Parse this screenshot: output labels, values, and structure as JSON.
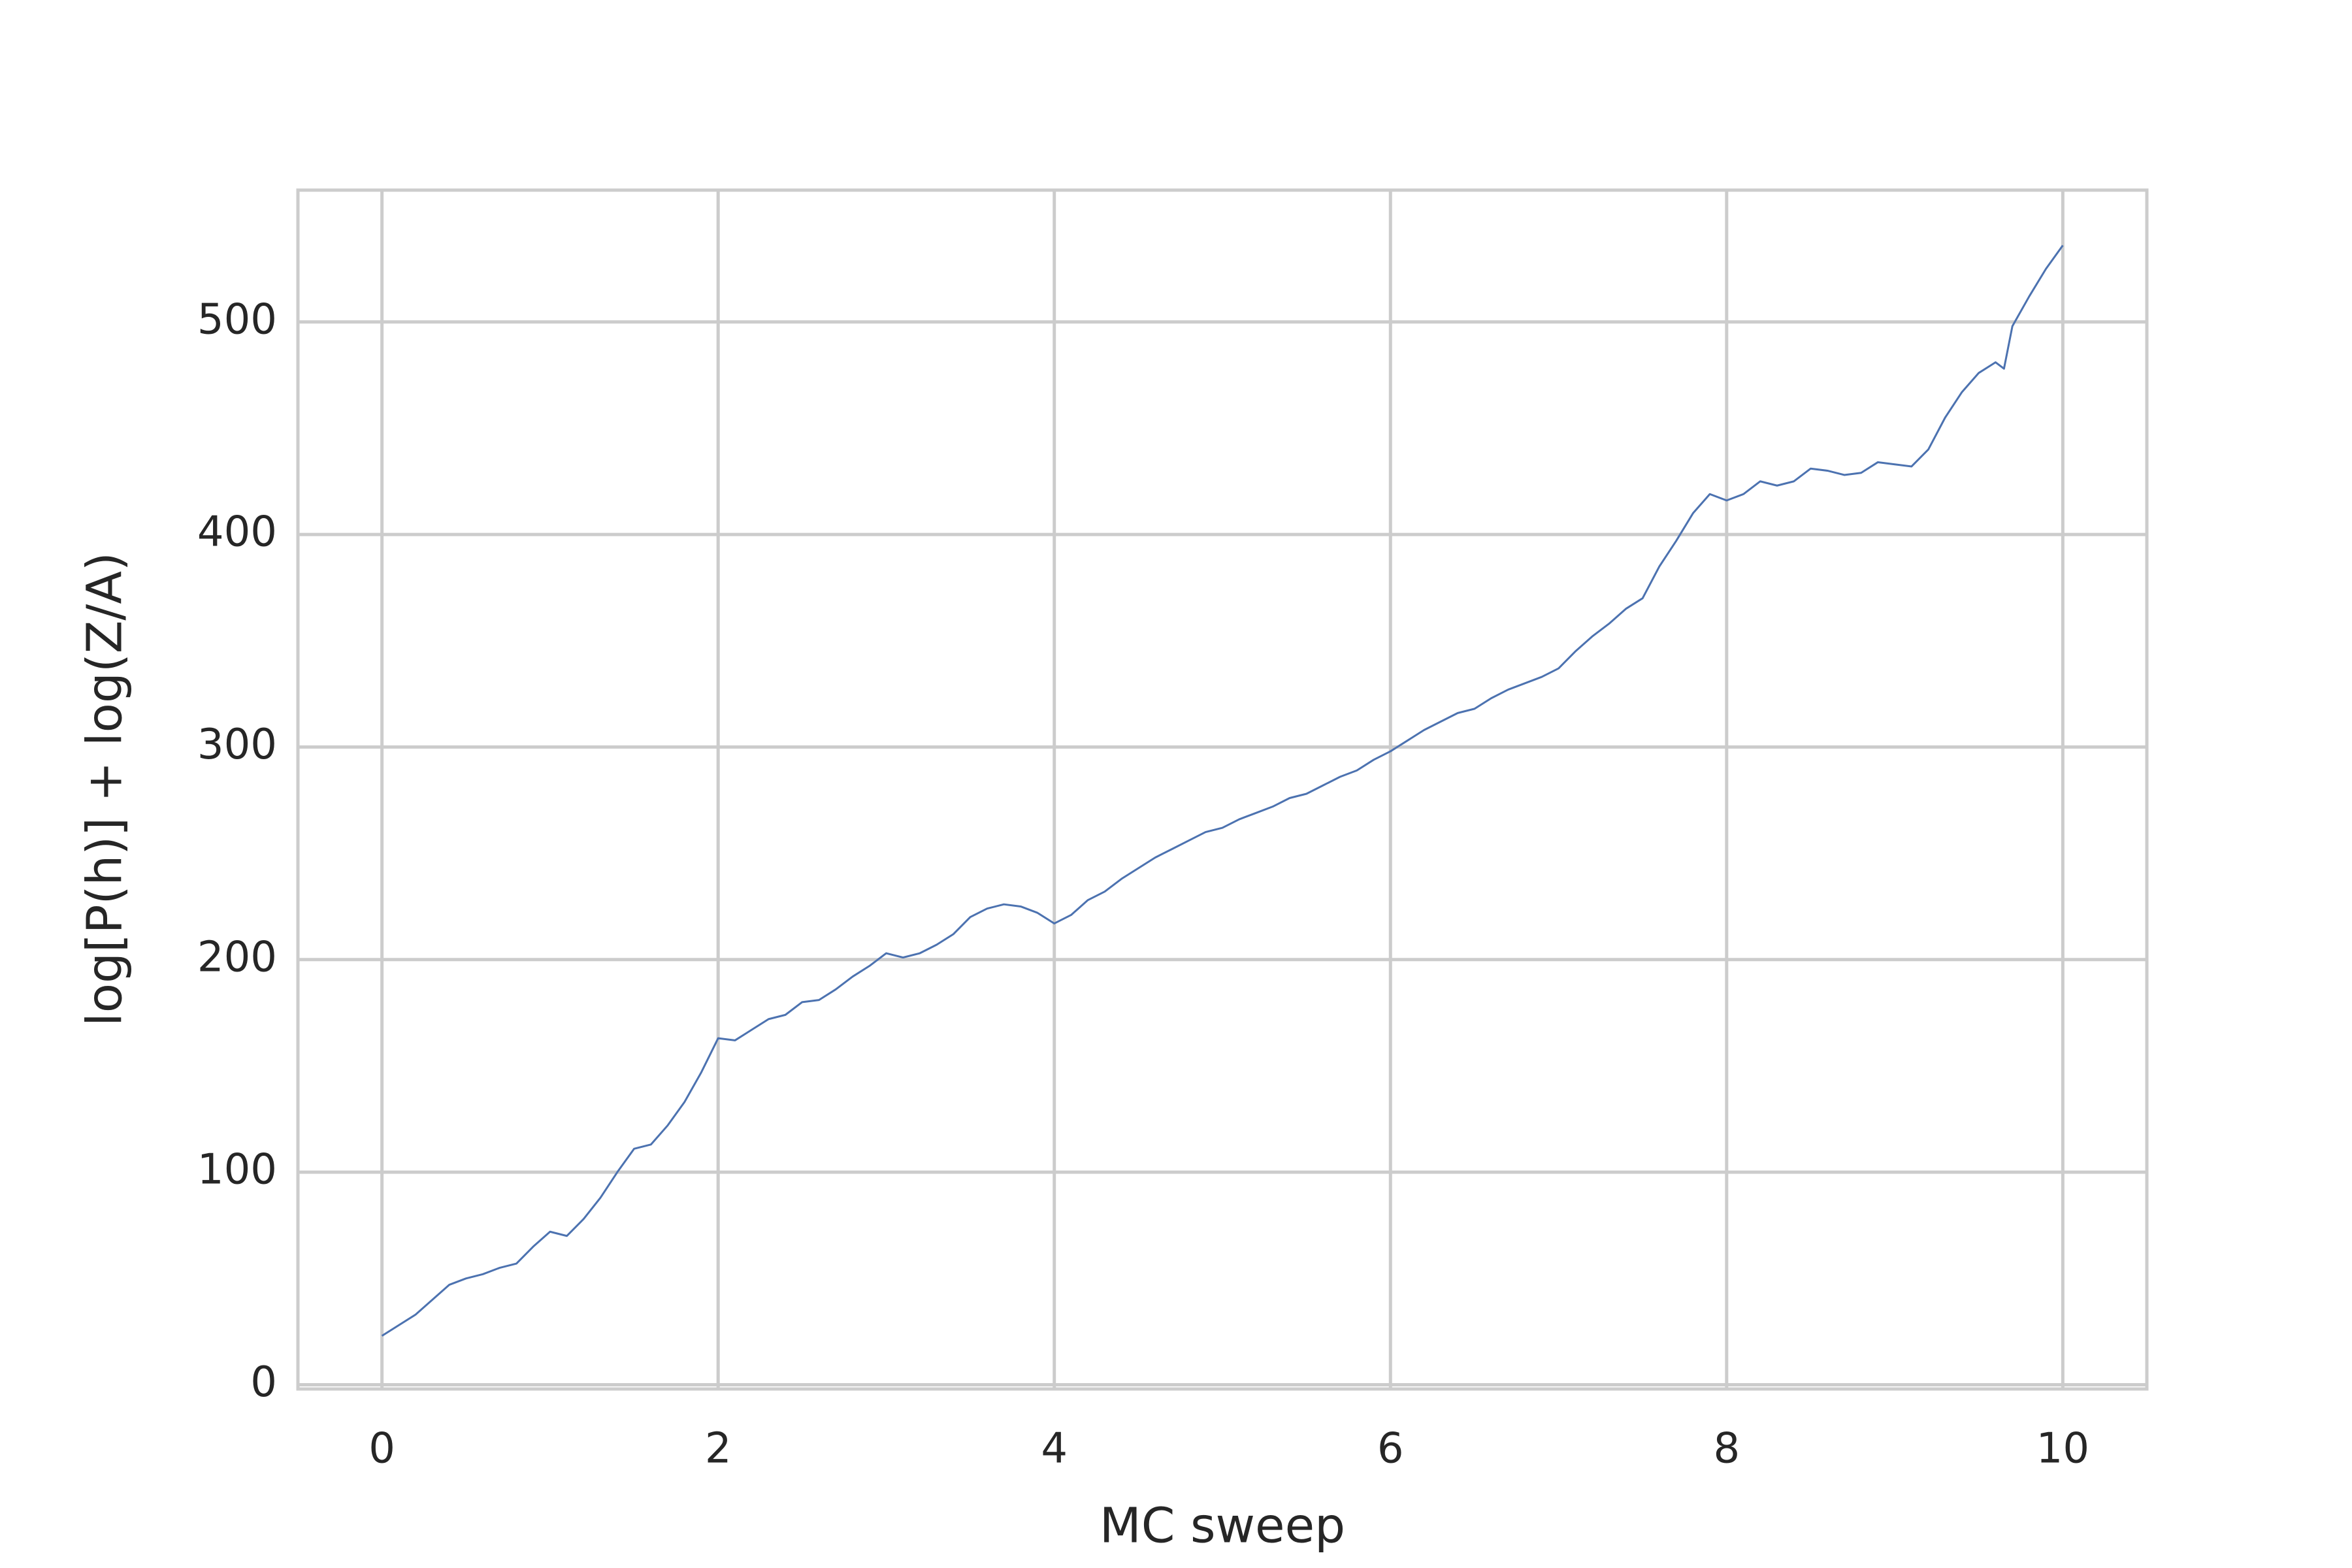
{
  "chart_data": {
    "type": "line",
    "xlabel": "MC sweep",
    "ylabel": "log[P(h)] + log(Z/A)",
    "x": [
      0,
      0.1,
      0.2,
      0.3,
      0.4,
      0.5,
      0.6,
      0.7,
      0.8,
      0.9,
      1.0,
      1.1,
      1.2,
      1.3,
      1.4,
      1.5,
      1.6,
      1.7,
      1.8,
      1.9,
      2.0,
      2.1,
      2.2,
      2.3,
      2.4,
      2.5,
      2.6,
      2.7,
      2.8,
      2.9,
      3.0,
      3.1,
      3.2,
      3.3,
      3.4,
      3.5,
      3.6,
      3.7,
      3.8,
      3.9,
      4.0,
      4.1,
      4.2,
      4.3,
      4.4,
      4.5,
      4.6,
      4.7,
      4.8,
      4.9,
      5.0,
      5.1,
      5.2,
      5.3,
      5.4,
      5.5,
      5.6,
      5.7,
      5.8,
      5.9,
      6.0,
      6.1,
      6.2,
      6.3,
      6.4,
      6.5,
      6.6,
      6.7,
      6.8,
      6.9,
      7.0,
      7.1,
      7.2,
      7.3,
      7.4,
      7.5,
      7.6,
      7.7,
      7.8,
      7.9,
      8.0,
      8.1,
      8.2,
      8.3,
      8.4,
      8.5,
      8.6,
      8.7,
      8.8,
      8.9,
      9.0,
      9.1,
      9.2,
      9.3,
      9.4,
      9.5,
      9.6,
      9.65,
      9.7,
      9.8,
      9.9,
      10.0
    ],
    "series": [
      {
        "color": "#4c72b0",
        "values": [
          23,
          28,
          33,
          40,
          47,
          50,
          52,
          55,
          57,
          65,
          72,
          70,
          78,
          88,
          100,
          111,
          113,
          122,
          133,
          147,
          163,
          162,
          167,
          172,
          174,
          180,
          181,
          186,
          192,
          197,
          203,
          201,
          203,
          207,
          212,
          220,
          224,
          226,
          225,
          222,
          217,
          221,
          228,
          232,
          238,
          243,
          248,
          252,
          256,
          260,
          262,
          266,
          269,
          272,
          276,
          278,
          282,
          286,
          289,
          294,
          298,
          303,
          308,
          312,
          316,
          318,
          323,
          327,
          330,
          333,
          337,
          345,
          352,
          358,
          365,
          370,
          385,
          397,
          410,
          419,
          416,
          419,
          425,
          423,
          425,
          431,
          430,
          428,
          429,
          434,
          433,
          432,
          440,
          455,
          467,
          476,
          481,
          478,
          498,
          512,
          525,
          536
        ]
      }
    ],
    "xlim": [
      -0.5,
      10.5
    ],
    "ylim": [
      -2,
      562
    ],
    "xticks": [
      0,
      2,
      4,
      6,
      8,
      10
    ],
    "yticks": [
      0,
      100,
      200,
      300,
      400,
      500
    ],
    "grid": true
  }
}
